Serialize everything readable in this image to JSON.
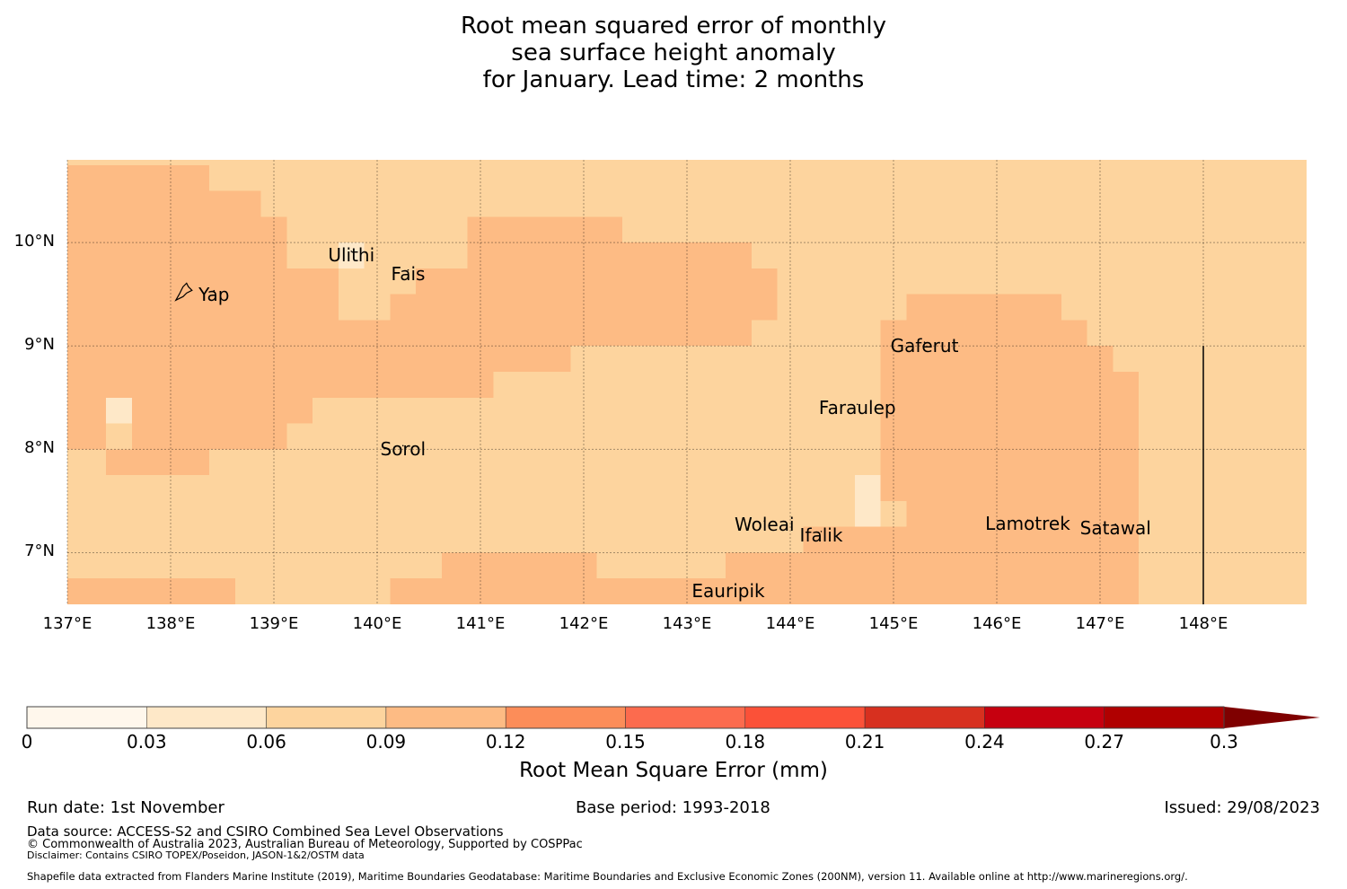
{
  "title": {
    "line1": "Root mean squared error of monthly",
    "line2": "sea surface height anomaly",
    "line3": "for January. Lead time: 2 months"
  },
  "map": {
    "lon_range": [
      137,
      149
    ],
    "lat_range": [
      6.5,
      10.8
    ],
    "lon_ticks": [
      {
        "value": 137,
        "label": "137°E"
      },
      {
        "value": 138,
        "label": "138°E"
      },
      {
        "value": 139,
        "label": "139°E"
      },
      {
        "value": 140,
        "label": "140°E"
      },
      {
        "value": 141,
        "label": "141°E"
      },
      {
        "value": 142,
        "label": "142°E"
      },
      {
        "value": 143,
        "label": "143°E"
      },
      {
        "value": 144,
        "label": "144°E"
      },
      {
        "value": 145,
        "label": "145°E"
      },
      {
        "value": 146,
        "label": "146°E"
      },
      {
        "value": 147,
        "label": "147°E"
      },
      {
        "value": 148,
        "label": "148°E"
      }
    ],
    "lat_ticks": [
      {
        "value": 10,
        "label": "10°N"
      },
      {
        "value": 9,
        "label": "9°N"
      },
      {
        "value": 8,
        "label": "8°N"
      },
      {
        "value": 7,
        "label": "7°N"
      }
    ],
    "background_color": "#fdd49e",
    "colors": {
      "c1": "#fee8c8",
      "c3": "#fdbb84"
    },
    "cells": [
      {
        "lon": [
          137,
          138.375
        ],
        "lat": [
          10.75,
          9.5
        ],
        "c": "c3"
      },
      {
        "lon": [
          138.375,
          138.875
        ],
        "lat": [
          10.5,
          9.5
        ],
        "c": "c3"
      },
      {
        "lon": [
          138.875,
          139.125
        ],
        "lat": [
          10.25,
          9.5
        ],
        "c": "c3"
      },
      {
        "lon": [
          137,
          139.125
        ],
        "lat": [
          9.5,
          8.25
        ],
        "c": "c3"
      },
      {
        "lon": [
          137,
          137.375
        ],
        "lat": [
          8.25,
          8.0
        ],
        "c": "c3"
      },
      {
        "lon": [
          137.625,
          139.125
        ],
        "lat": [
          8.25,
          8.0
        ],
        "c": "c3"
      },
      {
        "lon": [
          137.375,
          138.375
        ],
        "lat": [
          8.0,
          7.75
        ],
        "c": "c3"
      },
      {
        "lon": [
          139.125,
          139.375
        ],
        "lat": [
          9.5,
          8.25
        ],
        "c": "c3"
      },
      {
        "lon": [
          139.125,
          139.625
        ],
        "lat": [
          9.75,
          9.25
        ],
        "c": "c3"
      },
      {
        "lon": [
          139.125,
          140.125
        ],
        "lat": [
          9.25,
          8.5
        ],
        "c": "c3"
      },
      {
        "lon": [
          140.125,
          140.375
        ],
        "lat": [
          9.5,
          8.5
        ],
        "c": "c3"
      },
      {
        "lon": [
          139.375,
          140.375
        ],
        "lat": [
          8.5,
          8.5
        ],
        "c": "c3"
      },
      {
        "lon": [
          140.375,
          141.125
        ],
        "lat": [
          9.75,
          8.5
        ],
        "c": "c3"
      },
      {
        "lon": [
          139.125,
          141.125
        ],
        "lat": [
          8.75,
          8.5
        ],
        "c": "c3"
      },
      {
        "lon": [
          139.375,
          141.125
        ],
        "lat": [
          8.75,
          8.5
        ],
        "c": "c3"
      },
      {
        "lon": [
          140.875,
          142.375
        ],
        "lat": [
          10.25,
          9.0
        ],
        "c": "c3"
      },
      {
        "lon": [
          141.125,
          141.875
        ],
        "lat": [
          9.0,
          8.75
        ],
        "c": "c3"
      },
      {
        "lon": [
          142.375,
          143.625
        ],
        "lat": [
          10.0,
          9.0
        ],
        "c": "c3"
      },
      {
        "lon": [
          143.375,
          143.625
        ],
        "lat": [
          9.0,
          9.0
        ],
        "c": "c3"
      },
      {
        "lon": [
          143.625,
          143.875
        ],
        "lat": [
          9.75,
          9.25
        ],
        "c": "c3"
      },
      {
        "lon": [
          137.375,
          137.625
        ],
        "lat": [
          8.75,
          8.5
        ],
        "c": "c3"
      },
      {
        "lon": [
          145.125,
          146.625
        ],
        "lat": [
          9.5,
          7.0
        ],
        "c": "c3"
      },
      {
        "lon": [
          146.625,
          146.875
        ],
        "lat": [
          9.25,
          7.0
        ],
        "c": "c3"
      },
      {
        "lon": [
          146.875,
          147.125
        ],
        "lat": [
          9.0,
          6.5
        ],
        "c": "c3"
      },
      {
        "lon": [
          147.125,
          147.375
        ],
        "lat": [
          8.75,
          6.5
        ],
        "c": "c3"
      },
      {
        "lon": [
          144.875,
          145.125
        ],
        "lat": [
          9.25,
          7.5
        ],
        "c": "c3"
      },
      {
        "lon": [
          145.125,
          146.875
        ],
        "lat": [
          7.25,
          6.5
        ],
        "c": "c3"
      },
      {
        "lon": [
          144.875,
          145.125
        ],
        "lat": [
          7.25,
          6.5
        ],
        "c": "c3"
      },
      {
        "lon": [
          144.125,
          144.875
        ],
        "lat": [
          7.25,
          6.5
        ],
        "c": "c3"
      },
      {
        "lon": [
          143.375,
          144.125
        ],
        "lat": [
          7.0,
          6.5
        ],
        "c": "c3"
      },
      {
        "lon": [
          142.125,
          143.375
        ],
        "lat": [
          6.75,
          6.5
        ],
        "c": "c3"
      },
      {
        "lon": [
          140.625,
          142.125
        ],
        "lat": [
          7.0,
          6.5
        ],
        "c": "c3"
      },
      {
        "lon": [
          140.125,
          140.625
        ],
        "lat": [
          6.75,
          6.5
        ],
        "c": "c3"
      },
      {
        "lon": [
          137,
          138.625
        ],
        "lat": [
          6.75,
          6.5
        ],
        "c": "c3"
      },
      {
        "lon": [
          137.375,
          137.625
        ],
        "lat": [
          8.5,
          8.25
        ],
        "c": "c1"
      },
      {
        "lon": [
          139.625,
          139.875
        ],
        "lat": [
          10.0,
          9.75
        ],
        "c": "c1"
      },
      {
        "lon": [
          144.625,
          144.875
        ],
        "lat": [
          7.75,
          7.25
        ],
        "c": "c1"
      }
    ],
    "boundary_line": {
      "lon": 148,
      "lat": [
        6.5,
        9.0
      ]
    },
    "places": [
      {
        "name": "Ulithi",
        "lon": 139.75,
        "lat": 9.88
      },
      {
        "name": "Fais",
        "lon": 140.3,
        "lat": 9.7
      },
      {
        "name": "Yap",
        "lon": 138.42,
        "lat": 9.5
      },
      {
        "name": "Gaferut",
        "lon": 145.3,
        "lat": 9.0
      },
      {
        "name": "Faraulep",
        "lon": 144.65,
        "lat": 8.4
      },
      {
        "name": "Sorol",
        "lon": 140.25,
        "lat": 8.0
      },
      {
        "name": "Woleai",
        "lon": 143.75,
        "lat": 7.27
      },
      {
        "name": "Ifalik",
        "lon": 144.3,
        "lat": 7.17
      },
      {
        "name": "Lamotrek",
        "lon": 146.3,
        "lat": 7.28
      },
      {
        "name": "Satawal",
        "lon": 147.15,
        "lat": 7.24
      },
      {
        "name": "Eauripik",
        "lon": 143.4,
        "lat": 6.63
      }
    ]
  },
  "colorbar": {
    "label": "Root Mean Square Error (mm)",
    "bounds": [
      0,
      0.03,
      0.06,
      0.09,
      0.12,
      0.15,
      0.18,
      0.21,
      0.24,
      0.27,
      0.3
    ],
    "tick_labels": [
      "0",
      "0.03",
      "0.06",
      "0.09",
      "0.12",
      "0.15",
      "0.18",
      "0.21",
      "0.24",
      "0.27",
      "0.3"
    ],
    "colors": [
      "#fff7ec",
      "#fee8c8",
      "#fdd49e",
      "#fdbb84",
      "#fc8d59",
      "#fc6b4e",
      "#fb5138",
      "#d7301f",
      "#c6000f",
      "#b00000"
    ],
    "extend_color": "#7f0000"
  },
  "footer": {
    "run_date": "Run date: 1st November",
    "base_period": "Base period: 1993-2018",
    "issued": "Issued: 29/08/2023",
    "data_source": "Data source: ACCESS-S2 and CSIRO Combined Sea Level Observations",
    "copyright": "© Commonwealth of Australia 2023, Australian Bureau of Meteorology, Supported by COSPPac",
    "disclaimer": "Disclaimer: Contains CSIRO TOPEX/Poseidon, JASON-1&2/OSTM data",
    "shapefile": "Shapefile data extracted from Flanders Marine Institute (2019), Maritime Boundaries Geodatabase: Maritime Boundaries and Exclusive Economic Zones (200NM), version 11. Available online at http://www.marineregions.org/."
  }
}
